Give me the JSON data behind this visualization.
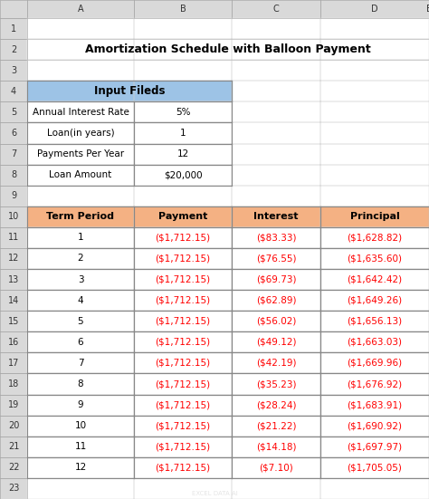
{
  "title": "Amortization Schedule with Balloon Payment",
  "input_header": "Input Fileds",
  "input_fields": [
    [
      "Annual Interest Rate",
      "5%"
    ],
    [
      "Loan(in years)",
      "1"
    ],
    [
      "Payments Per Year",
      "12"
    ],
    [
      "Loan Amount",
      "$20,000"
    ]
  ],
  "table_headers": [
    "Term Period",
    "Payment",
    "Interest",
    "Principal"
  ],
  "table_data": [
    [
      "1",
      "($1,712.15)",
      "($83.33)",
      "($1,628.82)"
    ],
    [
      "2",
      "($1,712.15)",
      "($76.55)",
      "($1,635.60)"
    ],
    [
      "3",
      "($1,712.15)",
      "($69.73)",
      "($1,642.42)"
    ],
    [
      "4",
      "($1,712.15)",
      "($62.89)",
      "($1,649.26)"
    ],
    [
      "5",
      "($1,712.15)",
      "($56.02)",
      "($1,656.13)"
    ],
    [
      "6",
      "($1,712.15)",
      "($49.12)",
      "($1,663.03)"
    ],
    [
      "7",
      "($1,712.15)",
      "($42.19)",
      "($1,669.96)"
    ],
    [
      "8",
      "($1,712.15)",
      "($35.23)",
      "($1,676.92)"
    ],
    [
      "9",
      "($1,712.15)",
      "($28.24)",
      "($1,683.91)"
    ],
    [
      "10",
      "($1,712.15)",
      "($21.22)",
      "($1,690.92)"
    ],
    [
      "11",
      "($1,712.15)",
      "($14.18)",
      "($1,697.97)"
    ],
    [
      "12",
      "($1,712.15)",
      "($7.10)",
      "($1,705.05)"
    ]
  ],
  "col_row_header_bg": "#F4B183",
  "input_header_bg": "#9DC3E6",
  "title_color": "#000000",
  "red_text_color": "#FF0000",
  "black_text_color": "#000000",
  "grid_line_color": "#BFBFBF",
  "background_color": "#FFFFFF",
  "spreadsheet_bg": "#FFFFFF",
  "row_bg_white": "#FFFFFF",
  "col_header_row": [
    "A",
    "B",
    "C",
    "D",
    "E"
  ],
  "row_numbers": [
    "1",
    "2",
    "3",
    "4",
    "5",
    "6",
    "7",
    "8",
    "9",
    "10",
    "11",
    "12",
    "13",
    "14",
    "15",
    "16",
    "17",
    "18",
    "19",
    "20",
    "21",
    "22",
    "23"
  ]
}
